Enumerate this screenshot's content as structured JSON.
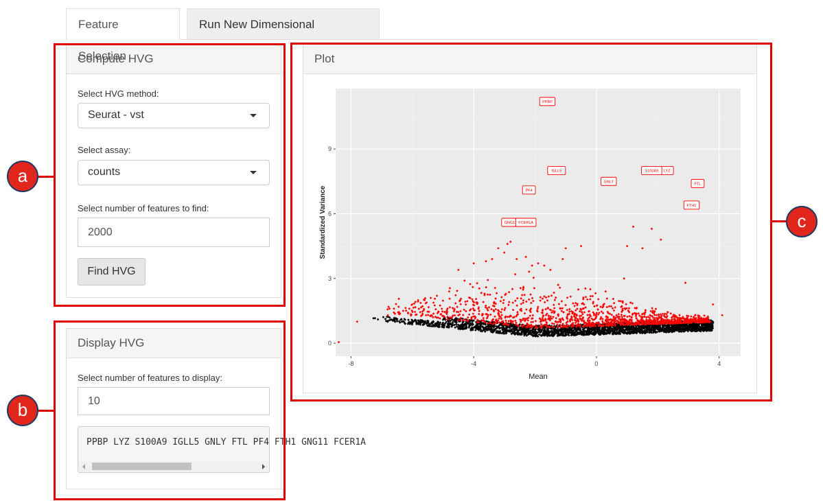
{
  "tabs": [
    {
      "label": "Feature Selection",
      "active": true
    },
    {
      "label": "Run New Dimensional Reduction",
      "active": false
    }
  ],
  "compute_hvg": {
    "title": "Compute HVG",
    "method_label": "Select HVG method:",
    "method_value": "Seurat - vst",
    "assay_label": "Select assay:",
    "assay_value": "counts",
    "nfeatures_label": "Select number of features to find:",
    "nfeatures_value": "2000",
    "button_label": "Find HVG"
  },
  "display_hvg": {
    "title": "Display HVG",
    "ndisplay_label": "Select number of features to display:",
    "ndisplay_value": "10",
    "output_text": "PPBP LYZ S100A9 IGLL5 GNLY FTL PF4 FTH1 GNG11 FCER1A"
  },
  "plot_panel": {
    "title": "Plot"
  },
  "annotations": {
    "a": "a",
    "b": "b",
    "c": "c"
  },
  "colors": {
    "annotation_red": "#e00000",
    "variable_points": "#ff0000",
    "other_points": "#000000",
    "plot_background": "#ebebeb"
  },
  "chart_data": {
    "type": "scatter",
    "xlabel": "Mean",
    "ylabel": "Standardized Variance",
    "xlim": [
      -8.5,
      4.7
    ],
    "ylim": [
      -0.6,
      11.8
    ],
    "x_ticks": [
      -8,
      -4,
      0,
      4
    ],
    "y_ticks": [
      0,
      3,
      6,
      9
    ],
    "grid": true,
    "series": [
      {
        "color": "#ff0000",
        "marker": "diamond",
        "points": [
          [
            -8.4,
            0.05
          ],
          [
            -7.8,
            1.0
          ],
          [
            -6.8,
            1.3
          ],
          [
            -6.6,
            1.6
          ],
          [
            -6.3,
            1.5
          ],
          [
            -6.1,
            1.6
          ],
          [
            -5.6,
            2.0
          ],
          [
            -5.4,
            2.1
          ],
          [
            -5.2,
            2.2
          ],
          [
            -4.8,
            2.4
          ],
          [
            -4.5,
            3.4
          ],
          [
            -4.3,
            2.9
          ],
          [
            -4.0,
            3.7
          ],
          [
            -3.6,
            3.8
          ],
          [
            -3.4,
            3.9
          ],
          [
            -3.2,
            4.4
          ],
          [
            -3.0,
            4.2
          ],
          [
            -2.9,
            4.6
          ],
          [
            -2.8,
            4.7
          ],
          [
            -2.6,
            3.9
          ],
          [
            -2.3,
            4.0
          ],
          [
            -2.1,
            3.6
          ],
          [
            -1.9,
            3.7
          ],
          [
            -1.7,
            3.6
          ],
          [
            -1.5,
            3.4
          ],
          [
            -1.1,
            3.9
          ],
          [
            -1.0,
            4.4
          ],
          [
            -0.5,
            4.5
          ],
          [
            -0.2,
            2.5
          ],
          [
            0.3,
            2.4
          ],
          [
            0.9,
            3.0
          ],
          [
            1.0,
            4.5
          ],
          [
            1.2,
            5.4
          ],
          [
            1.5,
            4.4
          ],
          [
            1.8,
            5.3
          ],
          [
            2.1,
            4.8
          ],
          [
            2.9,
            2.8
          ],
          [
            3.8,
            1.8
          ],
          [
            4.1,
            1.3
          ],
          [
            -1.6,
            11.2
          ],
          [
            -1.3,
            8.0
          ],
          [
            -2.2,
            7.1
          ],
          [
            -2.8,
            5.6
          ],
          [
            -2.3,
            5.6
          ],
          [
            0.4,
            7.5
          ],
          [
            1.8,
            8.0
          ],
          [
            2.3,
            8.0
          ],
          [
            3.3,
            7.4
          ],
          [
            3.1,
            6.4
          ]
        ],
        "labels": [
          {
            "text": "PPBP",
            "x": -1.6,
            "y": 11.2
          },
          {
            "text": "LYZ",
            "x": 2.3,
            "y": 8.0
          },
          {
            "text": "S100A9",
            "x": 1.8,
            "y": 8.0
          },
          {
            "text": "IGLL5",
            "x": -1.3,
            "y": 8.0
          },
          {
            "text": "GNLY",
            "x": 0.4,
            "y": 7.5
          },
          {
            "text": "FTL",
            "x": 3.3,
            "y": 7.4
          },
          {
            "text": "PF4",
            "x": -2.2,
            "y": 7.1
          },
          {
            "text": "FTH1",
            "x": 3.1,
            "y": 6.4
          },
          {
            "text": "GNG11",
            "x": -2.8,
            "y": 5.6
          },
          {
            "text": "FCER1A",
            "x": -2.3,
            "y": 5.6
          }
        ]
      },
      {
        "color": "#000000",
        "marker": "diamond",
        "description_of_trend": "dense band from x≈-7.3 to x≈3.8 with y from ≈1.3 (left) to ≈0.5 (middle) to ≈0.8 (right)"
      }
    ]
  }
}
